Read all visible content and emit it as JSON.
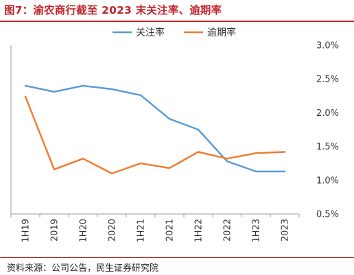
{
  "header": {
    "title": "图7：渝农商行截至 2023 末关注率、逾期率"
  },
  "footer": {
    "source": "资料来源：公司公告，民生证券研究院"
  },
  "chart_data": {
    "type": "line",
    "title": "图7：渝农商行截至 2023 末关注率、逾期率",
    "categories": [
      "1H19",
      "2019",
      "1H20",
      "2020",
      "1H21",
      "2021",
      "1H22",
      "2022",
      "1H23",
      "2023"
    ],
    "series": [
      {
        "name": "关注率",
        "color": "#5b9bd5",
        "values": [
          2.4,
          2.31,
          2.4,
          2.35,
          2.26,
          1.91,
          1.75,
          1.28,
          1.13,
          1.13
        ]
      },
      {
        "name": "逾期率",
        "color": "#ed7d31",
        "values": [
          2.24,
          1.16,
          1.32,
          1.1,
          1.25,
          1.18,
          1.42,
          1.32,
          1.4,
          1.42
        ]
      }
    ],
    "ylim": [
      0.5,
      3.0
    ],
    "yticks": [
      0.5,
      1.0,
      1.5,
      2.0,
      2.5,
      3.0
    ],
    "ytick_labels": [
      "0.5%",
      "1.0%",
      "1.5%",
      "2.0%",
      "2.5%",
      "3.0%"
    ],
    "y_axis_side": "right",
    "grid": false,
    "legend_position": "top-center",
    "xlabel": "",
    "ylabel": ""
  }
}
